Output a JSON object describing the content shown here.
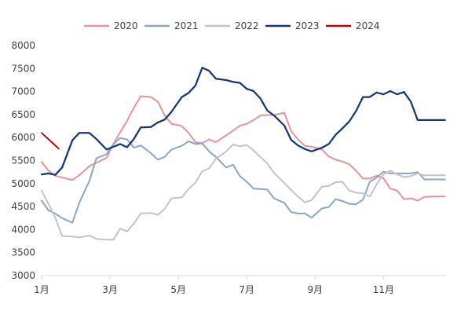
{
  "chart_data": {
    "type": "line",
    "title": "",
    "xlabel": "",
    "ylabel": "",
    "ylim": [
      3000,
      8000
    ],
    "y_ticks": [
      3000,
      3500,
      4000,
      4500,
      5000,
      5500,
      6000,
      6500,
      7000,
      7500,
      8000
    ],
    "x_range": [
      1,
      12.83
    ],
    "x_ticks": [
      {
        "value": 1,
        "label": "1月"
      },
      {
        "value": 3,
        "label": "3月"
      },
      {
        "value": 5,
        "label": "5月"
      },
      {
        "value": 7,
        "label": "7月"
      },
      {
        "value": 9,
        "label": "9月"
      },
      {
        "value": 11,
        "label": "11月"
      }
    ],
    "grid": false,
    "legend_position": "top",
    "series": [
      {
        "name": "2020",
        "color": "#e8929b",
        "x": [
          1.0,
          1.2,
          1.4,
          1.6,
          1.9,
          2.1,
          2.4,
          2.6,
          2.9,
          3.1,
          3.3,
          3.5,
          3.7,
          3.9,
          4.2,
          4.4,
          4.6,
          4.8,
          5.1,
          5.3,
          5.5,
          5.7,
          5.9,
          6.1,
          6.4,
          6.6,
          6.8,
          7.0,
          7.2,
          7.4,
          7.6,
          7.8,
          8.1,
          8.3,
          8.5,
          8.7,
          8.9,
          9.2,
          9.4,
          9.6,
          9.8,
          10.0,
          10.2,
          10.4,
          10.6,
          10.8,
          11.0,
          11.2,
          11.4,
          11.6,
          11.8,
          12.0,
          12.2,
          12.4,
          12.6,
          12.8
        ],
        "values": [
          5470,
          5280,
          5170,
          5130,
          5080,
          5180,
          5380,
          5450,
          5560,
          5860,
          6120,
          6360,
          6650,
          6900,
          6880,
          6780,
          6480,
          6300,
          6250,
          6100,
          5900,
          5880,
          5960,
          5900,
          6050,
          6150,
          6260,
          6300,
          6380,
          6480,
          6490,
          6490,
          6540,
          6140,
          5960,
          5820,
          5800,
          5740,
          5590,
          5520,
          5480,
          5420,
          5280,
          5110,
          5110,
          5170,
          5120,
          4890,
          4850,
          4660,
          4680,
          4630,
          4710,
          4720,
          4720,
          4720
        ]
      },
      {
        "name": "2021",
        "color": "#8da5c8",
        "x": [
          1.0,
          1.2,
          1.4,
          1.6,
          1.9,
          2.1,
          2.4,
          2.6,
          2.9,
          3.1,
          3.3,
          3.5,
          3.7,
          3.9,
          4.2,
          4.4,
          4.6,
          4.8,
          5.1,
          5.3,
          5.5,
          5.7,
          5.9,
          6.1,
          6.4,
          6.6,
          6.8,
          7.0,
          7.2,
          7.4,
          7.6,
          7.8,
          8.1,
          8.3,
          8.5,
          8.7,
          8.9,
          9.2,
          9.4,
          9.6,
          9.8,
          10.0,
          10.2,
          10.4,
          10.6,
          10.8,
          11.0,
          11.2,
          11.4,
          11.6,
          11.8,
          12.0,
          12.2,
          12.4,
          12.6,
          12.8
        ],
        "values": [
          4630,
          4420,
          4350,
          4250,
          4150,
          4580,
          5060,
          5550,
          5640,
          5860,
          5990,
          5960,
          5780,
          5830,
          5660,
          5520,
          5580,
          5740,
          5820,
          5920,
          5860,
          5870,
          5700,
          5580,
          5350,
          5410,
          5160,
          5040,
          4890,
          4880,
          4870,
          4680,
          4580,
          4380,
          4350,
          4350,
          4260,
          4460,
          4490,
          4660,
          4620,
          4560,
          4550,
          4650,
          5040,
          5130,
          5260,
          5220,
          5220,
          5220,
          5220,
          5250,
          5090,
          5090,
          5090,
          5090
        ]
      },
      {
        "name": "2022",
        "color": "#c4c4c4",
        "x": [
          1.0,
          1.2,
          1.4,
          1.6,
          1.9,
          2.1,
          2.4,
          2.6,
          2.9,
          3.1,
          3.3,
          3.5,
          3.7,
          3.9,
          4.2,
          4.4,
          4.6,
          4.8,
          5.1,
          5.3,
          5.5,
          5.7,
          5.9,
          6.1,
          6.4,
          6.6,
          6.8,
          7.0,
          7.2,
          7.4,
          7.6,
          7.8,
          8.1,
          8.3,
          8.5,
          8.7,
          8.9,
          9.2,
          9.4,
          9.6,
          9.8,
          10.0,
          10.2,
          10.4,
          10.6,
          10.8,
          11.0,
          11.2,
          11.4,
          11.6,
          11.8,
          12.0,
          12.2,
          12.4,
          12.6,
          12.8
        ],
        "values": [
          4850,
          4560,
          4260,
          3860,
          3850,
          3830,
          3870,
          3800,
          3780,
          3780,
          4020,
          3960,
          4130,
          4350,
          4360,
          4320,
          4450,
          4680,
          4700,
          4880,
          5020,
          5270,
          5330,
          5540,
          5700,
          5850,
          5810,
          5840,
          5720,
          5580,
          5440,
          5230,
          5010,
          4860,
          4720,
          4590,
          4640,
          4930,
          4950,
          5030,
          5040,
          4850,
          4800,
          4790,
          4720,
          4980,
          5200,
          5280,
          5200,
          5140,
          5160,
          5220,
          5180,
          5180,
          5180,
          5180
        ]
      },
      {
        "name": "2023",
        "color": "#14367a",
        "x": [
          1.0,
          1.2,
          1.4,
          1.6,
          1.9,
          2.1,
          2.4,
          2.6,
          2.9,
          3.1,
          3.3,
          3.5,
          3.7,
          3.9,
          4.2,
          4.4,
          4.6,
          4.8,
          5.1,
          5.3,
          5.5,
          5.7,
          5.9,
          6.1,
          6.4,
          6.6,
          6.8,
          7.0,
          7.2,
          7.4,
          7.6,
          7.8,
          8.1,
          8.3,
          8.5,
          8.7,
          8.9,
          9.2,
          9.4,
          9.6,
          9.8,
          10.0,
          10.2,
          10.4,
          10.6,
          10.8,
          11.0,
          11.2,
          11.4,
          11.6,
          11.8,
          12.0,
          12.2,
          12.4,
          12.6,
          12.8
        ],
        "values": [
          5200,
          5220,
          5190,
          5350,
          5940,
          6100,
          6100,
          5970,
          5740,
          5800,
          5860,
          5790,
          5970,
          6220,
          6230,
          6330,
          6390,
          6560,
          6880,
          6970,
          7130,
          7520,
          7450,
          7280,
          7250,
          7210,
          7190,
          7060,
          7010,
          6850,
          6590,
          6480,
          6260,
          5950,
          5830,
          5750,
          5700,
          5780,
          5860,
          6060,
          6200,
          6350,
          6580,
          6880,
          6880,
          6980,
          6940,
          7010,
          6940,
          6990,
          6780,
          6380,
          6380,
          6380,
          6380,
          6380
        ]
      },
      {
        "name": "2024",
        "color": "#c00000",
        "x": [
          1.0,
          1.5
        ],
        "values": [
          6100,
          5760
        ]
      }
    ]
  }
}
